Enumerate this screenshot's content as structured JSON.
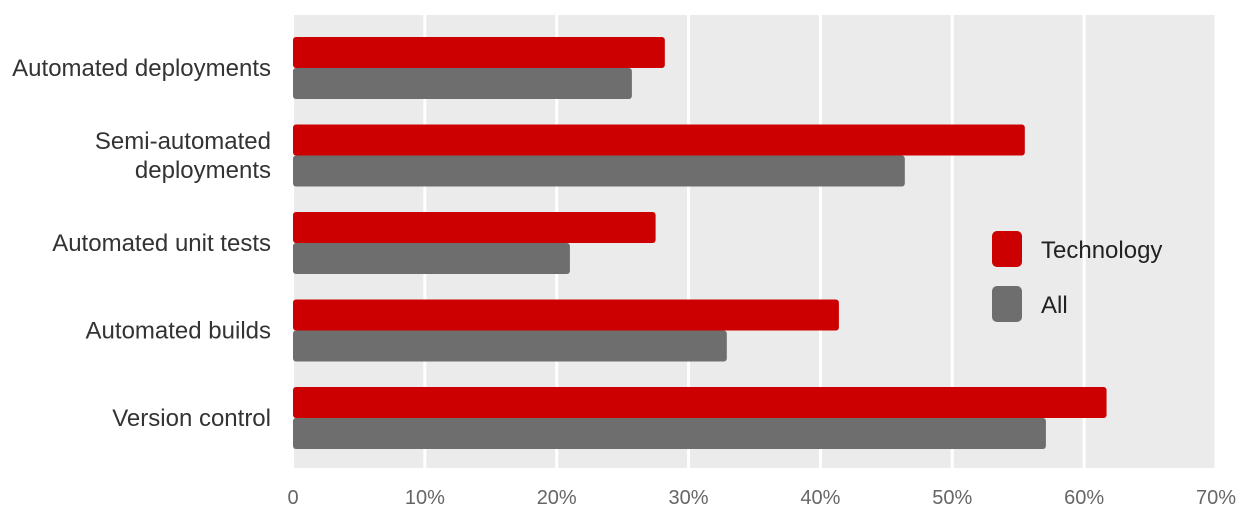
{
  "chart_data": {
    "type": "bar",
    "orientation": "horizontal",
    "categories": [
      "Automated deployments",
      "Semi-automated deployments",
      "Automated unit tests",
      "Automated builds",
      "Version control"
    ],
    "category_lines": [
      [
        "Automated deployments"
      ],
      [
        "Semi-automated",
        "deployments"
      ],
      [
        "Automated unit tests"
      ],
      [
        "Automated builds"
      ],
      [
        "Version control"
      ]
    ],
    "series": [
      {
        "name": "Technology",
        "color": "#cc0000",
        "values": [
          28.2,
          55.5,
          27.5,
          41.4,
          61.7
        ]
      },
      {
        "name": "All",
        "color": "#6e6e6e",
        "values": [
          25.7,
          46.4,
          21.0,
          32.9,
          57.1
        ]
      }
    ],
    "xlim": [
      0,
      70
    ],
    "ticks": [
      0,
      10,
      20,
      30,
      40,
      50,
      60,
      70
    ],
    "tick_labels": [
      "0",
      "10%",
      "20%",
      "30%",
      "40%",
      "50%",
      "60%",
      "70%"
    ],
    "grid": true,
    "background": "#ebebeb",
    "legend_position": "right",
    "title": "",
    "xlabel": "",
    "ylabel": ""
  }
}
